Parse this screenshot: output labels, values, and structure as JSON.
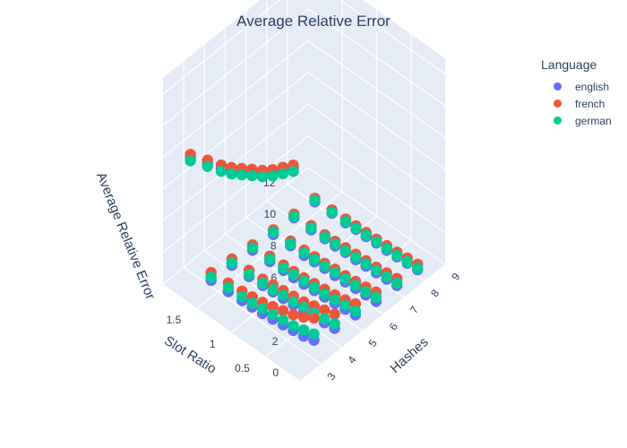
{
  "chart_data": {
    "type": "scatter",
    "title": "Average Relative Error",
    "legend_title": "Language",
    "legend_placement": "top-right",
    "grid": true,
    "x_axis": {
      "label": "Slot Ratio",
      "range": [
        0,
        2
      ],
      "ticks": [
        "0.5",
        "1",
        "1.5"
      ]
    },
    "y_axis": {
      "label": "Hashes",
      "range": [
        2,
        9
      ],
      "ticks": [
        "3",
        "4",
        "5",
        "6",
        "7",
        "8",
        "9"
      ]
    },
    "z_axis": {
      "label": "Average Relative Error",
      "range": [
        0,
        13
      ],
      "ticks": [
        "0",
        "2",
        "4",
        "6",
        "8",
        "10",
        "12"
      ]
    },
    "series": [
      {
        "name": "english",
        "color": "#636efa",
        "points": [
          [
            0.1,
            2,
            13.1
          ],
          [
            0.25,
            2,
            12.5
          ],
          [
            0.4,
            2,
            11.9
          ],
          [
            0.55,
            2,
            11.4
          ],
          [
            0.7,
            2,
            11.0
          ],
          [
            0.85,
            2,
            10.6
          ],
          [
            1.0,
            2,
            10.2
          ],
          [
            1.15,
            2,
            9.9
          ],
          [
            1.35,
            2,
            9.6
          ],
          [
            1.6,
            2,
            9.2
          ],
          [
            0.1,
            3,
            1.2
          ],
          [
            0.25,
            3,
            1.0
          ],
          [
            0.4,
            3,
            0.9
          ],
          [
            0.55,
            3,
            0.8
          ],
          [
            0.7,
            3,
            0.7
          ],
          [
            0.85,
            3,
            0.6
          ],
          [
            1.0,
            3,
            0.55
          ],
          [
            1.15,
            3,
            0.5
          ],
          [
            1.35,
            3,
            0.45
          ],
          [
            1.6,
            3,
            0.4
          ],
          [
            0.1,
            4,
            0.9
          ],
          [
            0.25,
            4,
            0.8
          ],
          [
            0.4,
            4,
            0.7
          ],
          [
            0.55,
            4,
            0.6
          ],
          [
            0.7,
            4,
            0.55
          ],
          [
            0.85,
            4,
            0.5
          ],
          [
            1.0,
            4,
            0.45
          ],
          [
            1.15,
            4,
            0.4
          ],
          [
            1.35,
            4,
            0.35
          ],
          [
            1.6,
            4,
            0.3
          ],
          [
            0.1,
            5,
            0.7
          ],
          [
            0.25,
            5,
            0.6
          ],
          [
            0.4,
            5,
            0.5
          ],
          [
            0.55,
            5,
            0.45
          ],
          [
            0.7,
            5,
            0.4
          ],
          [
            0.85,
            5,
            0.35
          ],
          [
            1.0,
            5,
            0.3
          ],
          [
            1.15,
            5,
            0.3
          ],
          [
            1.35,
            5,
            0.25
          ],
          [
            1.6,
            5,
            0.2
          ],
          [
            0.1,
            6,
            0.5
          ],
          [
            0.25,
            6,
            0.45
          ],
          [
            0.4,
            6,
            0.4
          ],
          [
            0.55,
            6,
            0.35
          ],
          [
            0.7,
            6,
            0.3
          ],
          [
            0.85,
            6,
            0.3
          ],
          [
            1.0,
            6,
            0.25
          ],
          [
            1.15,
            6,
            0.2
          ],
          [
            1.35,
            6,
            0.2
          ],
          [
            1.6,
            6,
            0.15
          ],
          [
            0.1,
            7,
            0.45
          ],
          [
            0.25,
            7,
            0.4
          ],
          [
            0.4,
            7,
            0.35
          ],
          [
            0.55,
            7,
            0.3
          ],
          [
            0.7,
            7,
            0.25
          ],
          [
            0.85,
            7,
            0.25
          ],
          [
            1.0,
            7,
            0.2
          ],
          [
            1.15,
            7,
            0.2
          ],
          [
            1.35,
            7,
            0.15
          ],
          [
            1.6,
            7,
            0.15
          ],
          [
            0.1,
            8,
            0.4
          ],
          [
            0.25,
            8,
            0.35
          ],
          [
            0.4,
            8,
            0.3
          ],
          [
            0.55,
            8,
            0.25
          ],
          [
            0.7,
            8,
            0.25
          ],
          [
            0.85,
            8,
            0.2
          ],
          [
            1.0,
            8,
            0.2
          ],
          [
            1.15,
            8,
            0.15
          ],
          [
            1.35,
            8,
            0.15
          ],
          [
            1.6,
            8,
            0.1
          ]
        ]
      },
      {
        "name": "french",
        "color": "#ef553b",
        "points": [
          [
            0.1,
            2,
            13.3
          ],
          [
            0.25,
            2,
            12.7
          ],
          [
            0.4,
            2,
            12.1
          ],
          [
            0.55,
            2,
            11.6
          ],
          [
            0.7,
            2,
            11.2
          ],
          [
            0.85,
            2,
            10.8
          ],
          [
            1.0,
            2,
            10.4
          ],
          [
            1.15,
            2,
            10.1
          ],
          [
            1.35,
            2,
            9.8
          ],
          [
            1.6,
            2,
            9.4
          ],
          [
            0.1,
            3,
            2.6
          ],
          [
            0.25,
            3,
            2.2
          ],
          [
            0.4,
            3,
            1.9
          ],
          [
            0.55,
            3,
            1.7
          ],
          [
            0.7,
            3,
            1.5
          ],
          [
            0.85,
            3,
            1.3
          ],
          [
            1.0,
            3,
            1.2
          ],
          [
            1.15,
            3,
            1.1
          ],
          [
            1.35,
            3,
            1.0
          ],
          [
            1.6,
            3,
            0.9
          ],
          [
            0.1,
            4,
            1.8
          ],
          [
            0.25,
            4,
            1.6
          ],
          [
            0.4,
            4,
            1.4
          ],
          [
            0.55,
            4,
            1.2
          ],
          [
            0.7,
            4,
            1.1
          ],
          [
            0.85,
            4,
            1.0
          ],
          [
            1.0,
            4,
            0.9
          ],
          [
            1.15,
            4,
            0.8
          ],
          [
            1.35,
            4,
            0.75
          ],
          [
            1.6,
            4,
            0.7
          ],
          [
            0.1,
            5,
            1.4
          ],
          [
            0.25,
            5,
            1.2
          ],
          [
            0.4,
            5,
            1.05
          ],
          [
            0.55,
            5,
            0.95
          ],
          [
            0.7,
            5,
            0.85
          ],
          [
            0.85,
            5,
            0.75
          ],
          [
            1.0,
            5,
            0.7
          ],
          [
            1.15,
            5,
            0.65
          ],
          [
            1.35,
            5,
            0.6
          ],
          [
            1.6,
            5,
            0.55
          ],
          [
            0.1,
            6,
            1.1
          ],
          [
            0.25,
            6,
            0.95
          ],
          [
            0.4,
            6,
            0.85
          ],
          [
            0.55,
            6,
            0.75
          ],
          [
            0.7,
            6,
            0.7
          ],
          [
            0.85,
            6,
            0.62
          ],
          [
            1.0,
            6,
            0.58
          ],
          [
            1.15,
            6,
            0.54
          ],
          [
            1.35,
            6,
            0.5
          ],
          [
            1.6,
            6,
            0.45
          ],
          [
            0.1,
            7,
            0.9
          ],
          [
            0.25,
            7,
            0.8
          ],
          [
            0.4,
            7,
            0.7
          ],
          [
            0.55,
            7,
            0.65
          ],
          [
            0.7,
            7,
            0.6
          ],
          [
            0.85,
            7,
            0.55
          ],
          [
            1.0,
            7,
            0.5
          ],
          [
            1.15,
            7,
            0.46
          ],
          [
            1.35,
            7,
            0.42
          ],
          [
            1.6,
            7,
            0.38
          ],
          [
            0.1,
            8,
            0.75
          ],
          [
            0.25,
            8,
            0.68
          ],
          [
            0.4,
            8,
            0.6
          ],
          [
            0.55,
            8,
            0.55
          ],
          [
            0.7,
            8,
            0.5
          ],
          [
            0.85,
            8,
            0.46
          ],
          [
            1.0,
            8,
            0.42
          ],
          [
            1.15,
            8,
            0.4
          ],
          [
            1.35,
            8,
            0.36
          ],
          [
            1.6,
            8,
            0.33
          ]
        ]
      },
      {
        "name": "german",
        "color": "#00cc96",
        "points": [
          [
            0.1,
            2,
            12.9
          ],
          [
            0.25,
            2,
            12.3
          ],
          [
            0.4,
            2,
            11.7
          ],
          [
            0.55,
            2,
            11.2
          ],
          [
            0.7,
            2,
            10.8
          ],
          [
            0.85,
            2,
            10.4
          ],
          [
            1.0,
            2,
            10.0
          ],
          [
            1.15,
            2,
            9.7
          ],
          [
            1.35,
            2,
            9.4
          ],
          [
            1.6,
            2,
            9.0
          ],
          [
            0.1,
            3,
            1.6
          ],
          [
            0.25,
            3,
            1.4
          ],
          [
            0.4,
            3,
            1.2
          ],
          [
            0.55,
            3,
            1.1
          ],
          [
            0.7,
            3,
            1.0
          ],
          [
            0.85,
            3,
            0.9
          ],
          [
            1.0,
            3,
            0.8
          ],
          [
            1.15,
            3,
            0.75
          ],
          [
            1.35,
            3,
            0.7
          ],
          [
            1.6,
            3,
            0.6
          ],
          [
            0.1,
            4,
            1.2
          ],
          [
            0.25,
            4,
            1.05
          ],
          [
            0.4,
            4,
            0.95
          ],
          [
            0.55,
            4,
            0.85
          ],
          [
            0.7,
            4,
            0.75
          ],
          [
            0.85,
            4,
            0.7
          ],
          [
            1.0,
            4,
            0.6
          ],
          [
            1.15,
            4,
            0.55
          ],
          [
            1.35,
            4,
            0.5
          ],
          [
            1.6,
            4,
            0.45
          ],
          [
            0.1,
            5,
            0.95
          ],
          [
            0.25,
            5,
            0.85
          ],
          [
            0.4,
            5,
            0.75
          ],
          [
            0.55,
            5,
            0.65
          ],
          [
            0.7,
            5,
            0.6
          ],
          [
            0.85,
            5,
            0.55
          ],
          [
            1.0,
            5,
            0.5
          ],
          [
            1.15,
            5,
            0.45
          ],
          [
            1.35,
            5,
            0.4
          ],
          [
            1.6,
            5,
            0.35
          ],
          [
            0.1,
            6,
            0.75
          ],
          [
            0.25,
            6,
            0.65
          ],
          [
            0.4,
            6,
            0.6
          ],
          [
            0.55,
            6,
            0.55
          ],
          [
            0.7,
            6,
            0.5
          ],
          [
            0.85,
            6,
            0.45
          ],
          [
            1.0,
            6,
            0.4
          ],
          [
            1.15,
            6,
            0.36
          ],
          [
            1.35,
            6,
            0.33
          ],
          [
            1.6,
            6,
            0.3
          ],
          [
            0.1,
            7,
            0.6
          ],
          [
            0.25,
            7,
            0.55
          ],
          [
            0.4,
            7,
            0.5
          ],
          [
            0.55,
            7,
            0.45
          ],
          [
            0.7,
            7,
            0.4
          ],
          [
            0.85,
            7,
            0.36
          ],
          [
            1.0,
            7,
            0.33
          ],
          [
            1.15,
            7,
            0.3
          ],
          [
            1.35,
            7,
            0.27
          ],
          [
            1.6,
            7,
            0.24
          ],
          [
            0.1,
            8,
            0.5
          ],
          [
            0.25,
            8,
            0.45
          ],
          [
            0.4,
            8,
            0.4
          ],
          [
            0.55,
            8,
            0.36
          ],
          [
            0.7,
            8,
            0.33
          ],
          [
            0.85,
            8,
            0.3
          ],
          [
            1.0,
            8,
            0.27
          ],
          [
            1.15,
            8,
            0.24
          ],
          [
            1.35,
            8,
            0.22
          ],
          [
            1.6,
            8,
            0.2
          ]
        ]
      }
    ]
  }
}
